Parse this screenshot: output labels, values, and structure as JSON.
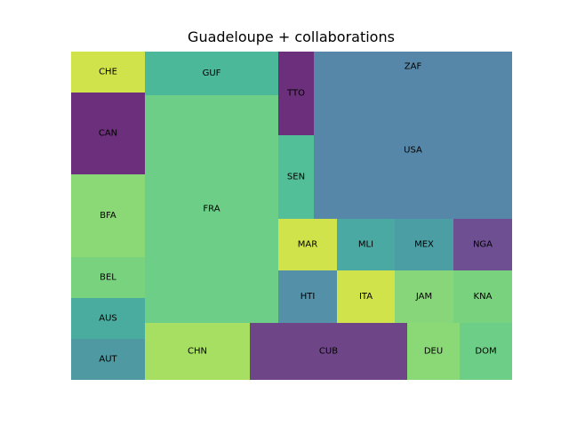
{
  "chart_data": {
    "type": "treemap",
    "title": "Guadeloupe + collaborations",
    "items": [
      {
        "label": "CHE",
        "value": 38,
        "color": "#d1e34b"
      },
      {
        "label": "CAN",
        "value": 76,
        "color": "#6b2f7b"
      },
      {
        "label": "BFA",
        "value": 77,
        "color": "#8bd876"
      },
      {
        "label": "BEL",
        "value": 38,
        "color": "#79d27d"
      },
      {
        "label": "AUS",
        "value": 38,
        "color": "#4aac9f"
      },
      {
        "label": "AUT",
        "value": 38,
        "color": "#4f9aa2"
      },
      {
        "label": "GUF",
        "value": 60,
        "color": "#4bb89a"
      },
      {
        "label": "FRA",
        "value": 311,
        "color": "#6dce87"
      },
      {
        "label": "TTO",
        "value": 45,
        "color": "#6b2f7b"
      },
      {
        "label": "SEN",
        "value": 45,
        "color": "#53bf98"
      },
      {
        "label": "ZAF",
        "value": 52,
        "color": "#5687a8"
      },
      {
        "label": "USA",
        "value": 241,
        "color": "#5687a8"
      },
      {
        "label": "MAR",
        "value": 28,
        "color": "#d1e34b"
      },
      {
        "label": "MLI",
        "value": 28,
        "color": "#4aa9a2"
      },
      {
        "label": "MEX",
        "value": 28,
        "color": "#4a9ea4"
      },
      {
        "label": "NGA",
        "value": 28,
        "color": "#6e4f92"
      },
      {
        "label": "HTI",
        "value": 28,
        "color": "#5490a7"
      },
      {
        "label": "ITA",
        "value": 28,
        "color": "#d1e34b"
      },
      {
        "label": "JAM",
        "value": 28,
        "color": "#87d679"
      },
      {
        "label": "KNA",
        "value": 28,
        "color": "#79d27d"
      },
      {
        "label": "CHN",
        "value": 63,
        "color": "#a7df63"
      },
      {
        "label": "CUB",
        "value": 95,
        "color": "#6e4688"
      },
      {
        "label": "DEU",
        "value": 32,
        "color": "#8bd876"
      },
      {
        "label": "DOM",
        "value": 32,
        "color": "#6dce87"
      }
    ],
    "grid": false,
    "axes": false
  }
}
